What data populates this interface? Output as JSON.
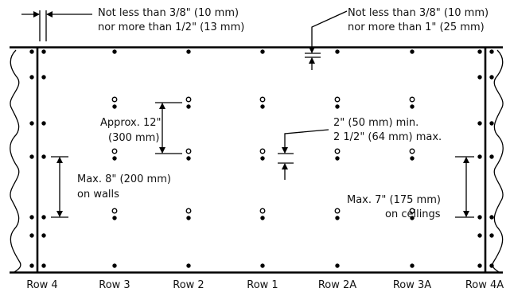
{
  "annotations": {
    "edge_gap_line1": "Not less than 3/8\" (10 mm)",
    "edge_gap_line2": "nor more than 1/2\" (13 mm)",
    "top_gap_line1": "Not less than 3/8\" (10 mm)",
    "top_gap_line2": "nor more than 1\" (25 mm)",
    "approx_line1": "Approx. 12\"",
    "approx_line2": "(300 mm)",
    "min_max_line1": "2\" (50 mm) min.",
    "min_max_line2": "2 1/2\" (64 mm) max.",
    "walls_line1": "Max. 8\" (200 mm)",
    "walls_line2": "on walls",
    "ceilings_line1": "Max. 7\" (175 mm)",
    "ceilings_line2": "on ceilings"
  },
  "rows": [
    "Row 4",
    "Row 3",
    "Row 2",
    "Row 1",
    "Row 2A",
    "Row 3A",
    "Row 4A"
  ]
}
